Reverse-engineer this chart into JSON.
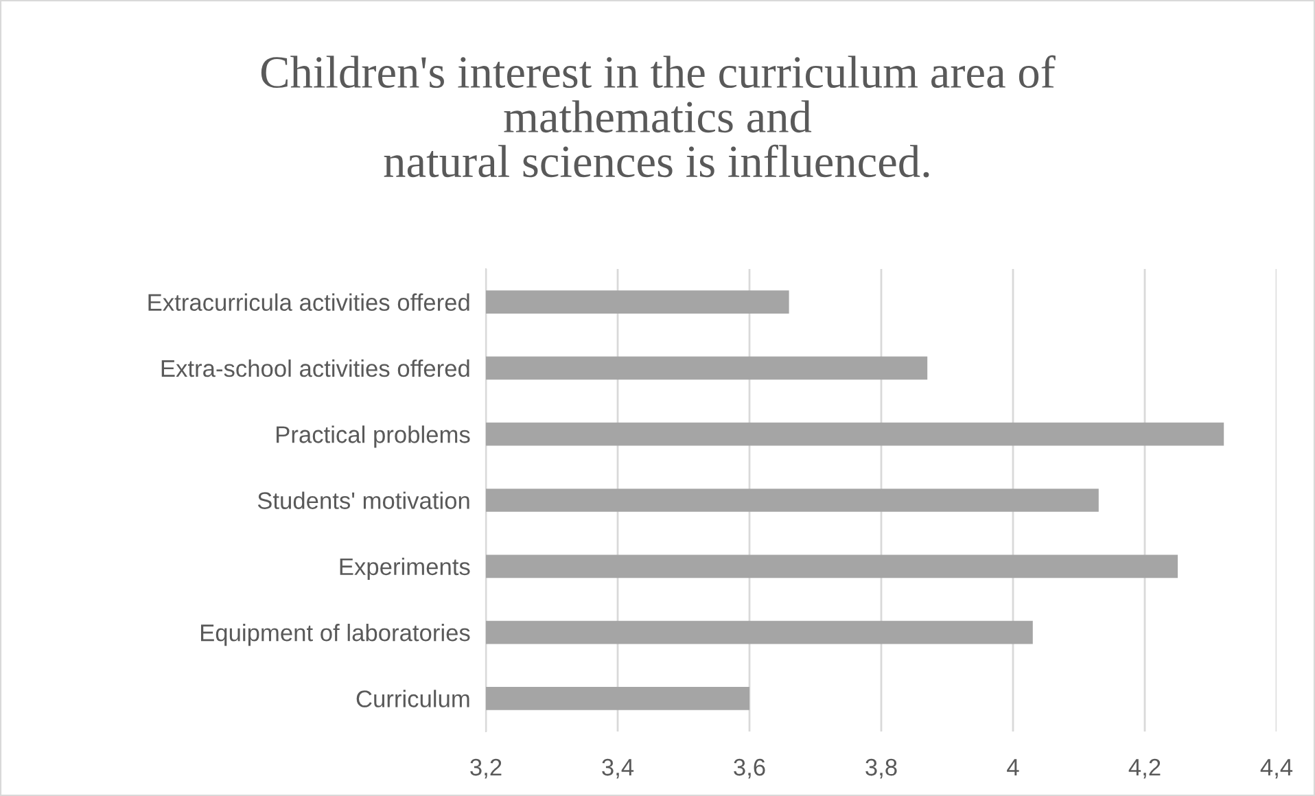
{
  "chart_data": {
    "type": "bar",
    "orientation": "horizontal",
    "title": "Children's interest in the curriculum area of\nmathematics and\nnatural sciences is influenced.",
    "categories": [
      "Extracurricula activities offered",
      "Extra-school activities offered",
      "Practical problems",
      "Students' motivation",
      "Experiments",
      "Equipment of laboratories",
      "Curriculum"
    ],
    "values": [
      3.66,
      3.87,
      4.32,
      4.13,
      4.25,
      4.03,
      3.6
    ],
    "color": "#a5a5a5",
    "xlim": [
      3.2,
      4.4
    ],
    "xticks": [
      {
        "value": 3.2,
        "label": "3,2"
      },
      {
        "value": 3.4,
        "label": "3,4"
      },
      {
        "value": 3.6,
        "label": "3,6"
      },
      {
        "value": 3.8,
        "label": "3,8"
      },
      {
        "value": 4,
        "label": "4"
      },
      {
        "value": 4.2,
        "label": "4,2"
      },
      {
        "value": 4.4,
        "label": "4,4"
      }
    ],
    "grid": "x",
    "legend": false
  }
}
